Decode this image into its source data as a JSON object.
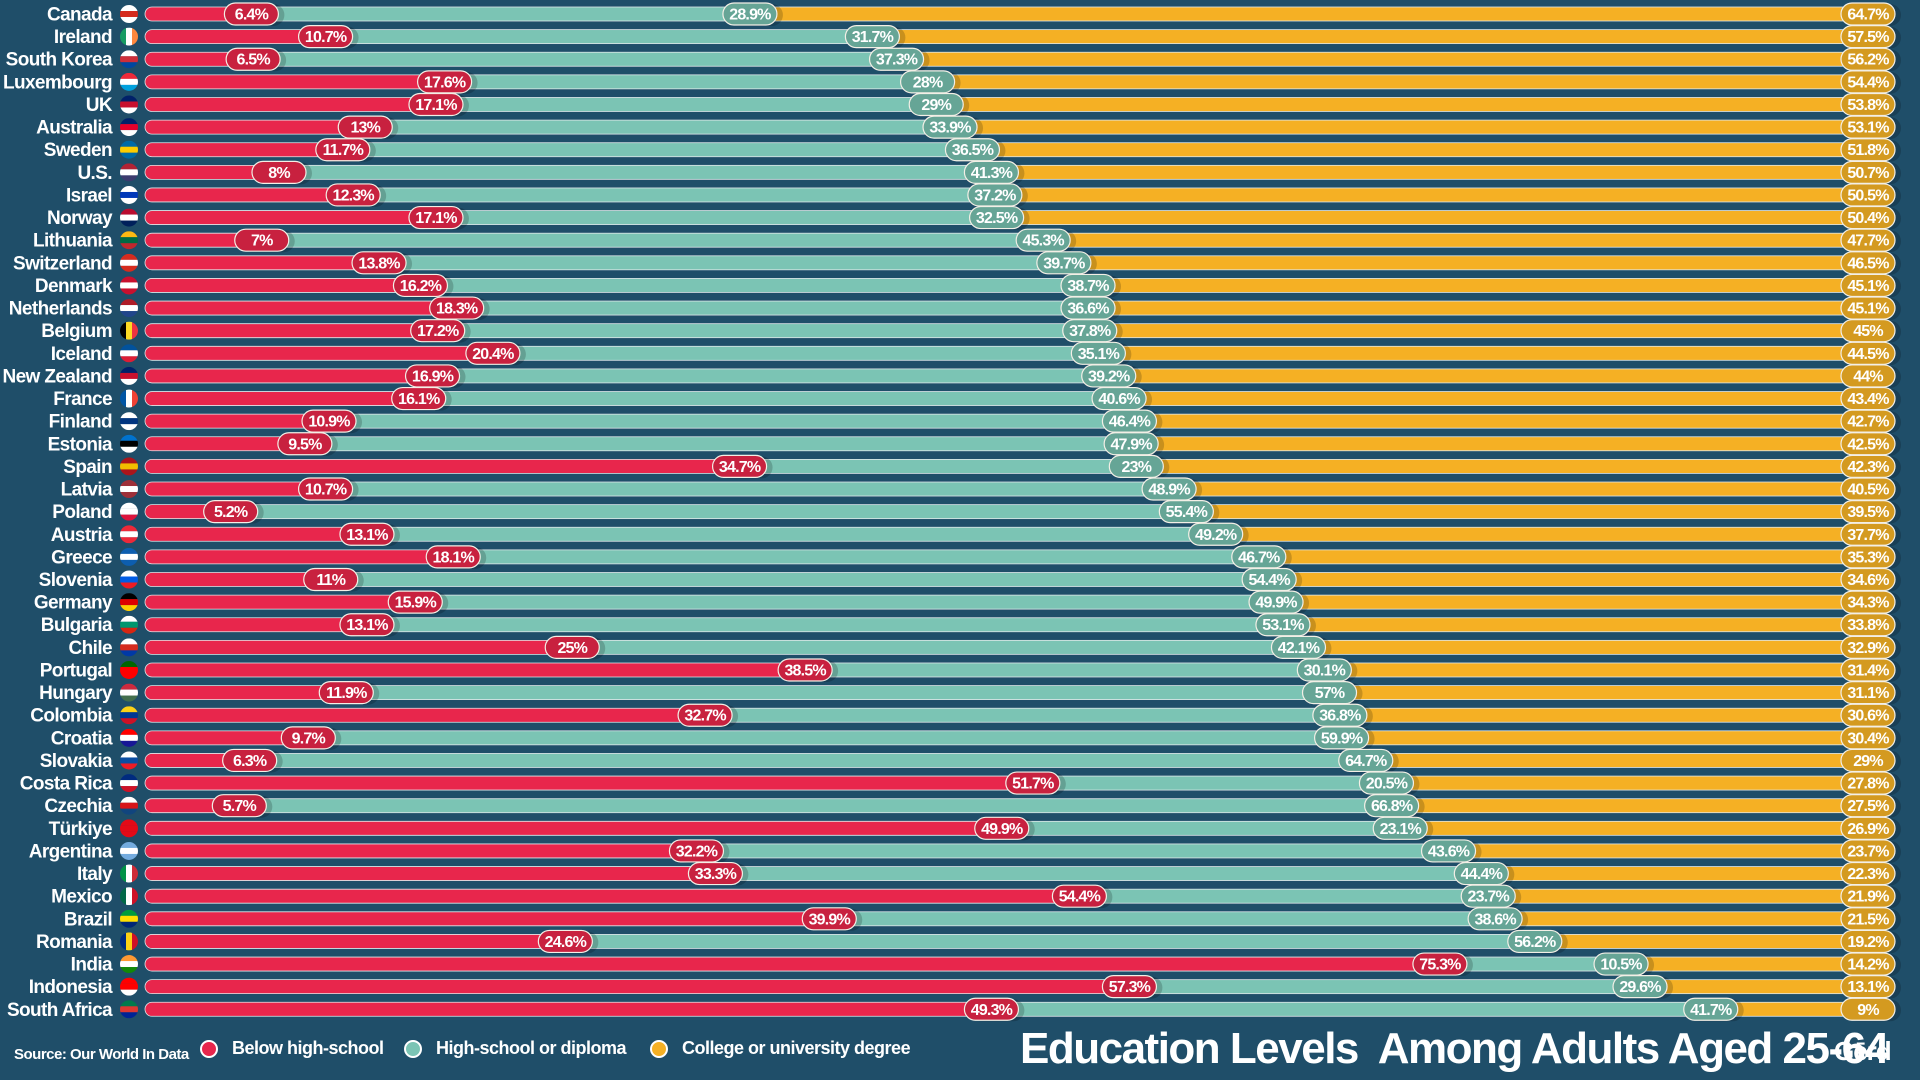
{
  "chart_data": {
    "type": "bar",
    "orientation": "horizontal",
    "stacked": true,
    "title": "Education Levels  Among Adults Aged 25-64",
    "source": "Source: Our World In Data",
    "brand": "Gērd",
    "xlim": [
      0,
      100
    ],
    "unit": "%",
    "legend": [
      {
        "key": "below",
        "label": "Below high-school",
        "color": "#e8264c"
      },
      {
        "key": "high",
        "label": "High-school or diploma",
        "color": "#7bc4b4"
      },
      {
        "key": "college",
        "label": "College or university degree",
        "color": "#f5b024"
      }
    ],
    "categories": [
      "Canada",
      "Ireland",
      "South Korea",
      "Luxembourg",
      "UK",
      "Australia",
      "Sweden",
      "U.S.",
      "Israel",
      "Norway",
      "Lithuania",
      "Switzerland",
      "Denmark",
      "Netherlands",
      "Belgium",
      "Iceland",
      "New Zealand",
      "France",
      "Finland",
      "Estonia",
      "Spain",
      "Latvia",
      "Poland",
      "Austria",
      "Greece",
      "Slovenia",
      "Germany",
      "Bulgaria",
      "Chile",
      "Portugal",
      "Hungary",
      "Colombia",
      "Croatia",
      "Slovakia",
      "Costa Rica",
      "Czechia",
      "Türkiye",
      "Argentina",
      "Italy",
      "Mexico",
      "Brazil",
      "Romania",
      "India",
      "Indonesia",
      "South Africa"
    ],
    "series": [
      {
        "name": "Below high-school",
        "values": [
          6.4,
          10.7,
          6.5,
          17.6,
          17.1,
          13,
          11.7,
          8,
          12.3,
          17.1,
          7,
          13.8,
          16.2,
          18.3,
          17.2,
          20.4,
          16.9,
          16.1,
          10.9,
          9.5,
          34.7,
          10.7,
          5.2,
          13.1,
          18.1,
          11,
          15.9,
          13.1,
          25,
          38.5,
          11.9,
          32.7,
          9.7,
          6.3,
          51.7,
          5.7,
          49.9,
          32.2,
          33.3,
          54.4,
          39.9,
          24.6,
          75.3,
          57.3,
          49.3
        ]
      },
      {
        "name": "High-school or diploma",
        "values": [
          28.9,
          31.7,
          37.3,
          28,
          29,
          33.9,
          36.5,
          41.3,
          37.2,
          32.5,
          45.3,
          39.7,
          38.7,
          36.6,
          37.8,
          35.1,
          39.2,
          40.6,
          46.4,
          47.9,
          23,
          48.9,
          55.4,
          49.2,
          46.7,
          54.4,
          49.9,
          53.1,
          42.1,
          30.1,
          57,
          36.8,
          59.9,
          64.7,
          20.5,
          66.8,
          23.1,
          43.6,
          44.4,
          23.7,
          38.6,
          56.2,
          10.5,
          29.6,
          41.7
        ]
      },
      {
        "name": "College or university degree",
        "values": [
          64.7,
          57.5,
          56.2,
          54.4,
          53.8,
          53.1,
          51.8,
          50.7,
          50.5,
          50.4,
          47.7,
          46.5,
          45.1,
          45.1,
          45,
          44.5,
          44,
          43.4,
          42.7,
          42.5,
          42.3,
          40.5,
          39.5,
          37.7,
          35.3,
          34.6,
          34.3,
          33.8,
          32.9,
          31.4,
          31.1,
          30.6,
          30.4,
          29,
          27.8,
          27.5,
          26.9,
          23.7,
          22.3,
          21.9,
          21.5,
          19.2,
          14.2,
          13.1,
          9
        ]
      }
    ],
    "flags": [
      "canada-flag-icon",
      "ireland-flag-icon",
      "south-korea-flag-icon",
      "luxembourg-flag-icon",
      "uk-flag-icon",
      "australia-flag-icon",
      "sweden-flag-icon",
      "us-flag-icon",
      "israel-flag-icon",
      "norway-flag-icon",
      "lithuania-flag-icon",
      "switzerland-flag-icon",
      "denmark-flag-icon",
      "netherlands-flag-icon",
      "belgium-flag-icon",
      "iceland-flag-icon",
      "new-zealand-flag-icon",
      "france-flag-icon",
      "finland-flag-icon",
      "estonia-flag-icon",
      "spain-flag-icon",
      "latvia-flag-icon",
      "poland-flag-icon",
      "austria-flag-icon",
      "greece-flag-icon",
      "slovenia-flag-icon",
      "germany-flag-icon",
      "bulgaria-flag-icon",
      "chile-flag-icon",
      "portugal-flag-icon",
      "hungary-flag-icon",
      "colombia-flag-icon",
      "croatia-flag-icon",
      "slovakia-flag-icon",
      "costa-rica-flag-icon",
      "czechia-flag-icon",
      "turkiye-flag-icon",
      "argentina-flag-icon",
      "italy-flag-icon",
      "mexico-flag-icon",
      "brazil-flag-icon",
      "romania-flag-icon",
      "india-flag-icon",
      "indonesia-flag-icon",
      "south-africa-flag-icon"
    ],
    "flag_colors": [
      [
        "#ffffff",
        "#d52b1e",
        "#ffffff"
      ],
      [
        "#169b62",
        "#ffffff",
        "#ff883e"
      ],
      [
        "#ffffff",
        "#cd2e3a",
        "#0047a0"
      ],
      [
        "#ed2939",
        "#ffffff",
        "#00a1de"
      ],
      [
        "#012169",
        "#c8102e",
        "#ffffff"
      ],
      [
        "#012169",
        "#e4002b",
        "#ffffff"
      ],
      [
        "#006aa7",
        "#fecc00",
        "#006aa7"
      ],
      [
        "#b22234",
        "#ffffff",
        "#3c3b6e"
      ],
      [
        "#ffffff",
        "#0038b8",
        "#ffffff"
      ],
      [
        "#ba0c2f",
        "#ffffff",
        "#00205b"
      ],
      [
        "#fdb913",
        "#006a44",
        "#c1272d"
      ],
      [
        "#d52b1e",
        "#ffffff",
        "#d52b1e"
      ],
      [
        "#c8102e",
        "#ffffff",
        "#c8102e"
      ],
      [
        "#ae1c28",
        "#ffffff",
        "#21468b"
      ],
      [
        "#000000",
        "#fdda24",
        "#ef3340"
      ],
      [
        "#02529c",
        "#ffffff",
        "#dc1e35"
      ],
      [
        "#012169",
        "#c8102e",
        "#ffffff"
      ],
      [
        "#0055a4",
        "#ffffff",
        "#ef4135"
      ],
      [
        "#ffffff",
        "#003580",
        "#ffffff"
      ],
      [
        "#0072ce",
        "#000000",
        "#ffffff"
      ],
      [
        "#aa151b",
        "#f1bf00",
        "#aa151b"
      ],
      [
        "#9e3039",
        "#ffffff",
        "#9e3039"
      ],
      [
        "#ffffff",
        "#ffffff",
        "#dc143c"
      ],
      [
        "#ed2939",
        "#ffffff",
        "#ed2939"
      ],
      [
        "#0d5eaf",
        "#ffffff",
        "#0d5eaf"
      ],
      [
        "#ffffff",
        "#005ce5",
        "#ed1c24"
      ],
      [
        "#000000",
        "#dd0000",
        "#ffce00"
      ],
      [
        "#ffffff",
        "#00966e",
        "#d62612"
      ],
      [
        "#ffffff",
        "#d52b1e",
        "#0039a6"
      ],
      [
        "#006600",
        "#ff0000",
        "#ff0000"
      ],
      [
        "#cd2a3e",
        "#ffffff",
        "#436f4d"
      ],
      [
        "#fcd116",
        "#003893",
        "#ce1126"
      ],
      [
        "#ff0000",
        "#ffffff",
        "#171796"
      ],
      [
        "#ffffff",
        "#0b4ea2",
        "#ee1c25"
      ],
      [
        "#002b7f",
        "#ffffff",
        "#ce1126"
      ],
      [
        "#ffffff",
        "#d7141a",
        "#11457e"
      ],
      [
        "#e30a17",
        "#e30a17",
        "#e30a17"
      ],
      [
        "#74acdf",
        "#ffffff",
        "#74acdf"
      ],
      [
        "#009246",
        "#ffffff",
        "#ce2b37"
      ],
      [
        "#006847",
        "#ffffff",
        "#ce1126"
      ],
      [
        "#009c3b",
        "#ffdf00",
        "#002776"
      ],
      [
        "#002b7f",
        "#fcd116",
        "#ce1126"
      ],
      [
        "#ff9933",
        "#ffffff",
        "#138808"
      ],
      [
        "#ff0000",
        "#ff0000",
        "#ffffff"
      ],
      [
        "#007a4d",
        "#de3831",
        "#002395"
      ]
    ],
    "label_pill_colors": {
      "below": "#c8213f",
      "high": "#66a596",
      "college": "#d49a20"
    }
  },
  "footer": {
    "source": "Source: Our World In Data",
    "legend": [
      "Below high-school",
      "High-school or diploma",
      "College or university degree"
    ],
    "title": "Education Levels  Among Adults Aged 25-64",
    "brand": "Gērd"
  }
}
